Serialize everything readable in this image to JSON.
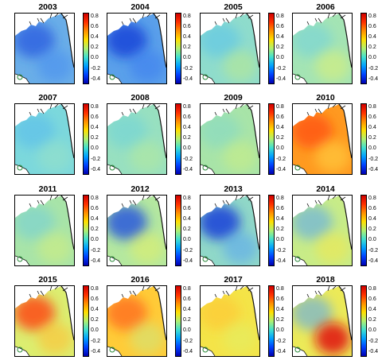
{
  "colorbar": {
    "ticks": [
      "0.8",
      "0.6",
      "0.4",
      "0.2",
      "0.0",
      "-0.2",
      "-0.4"
    ],
    "colors": [
      "#d00000",
      "#ff3000",
      "#ff9000",
      "#ffe000",
      "#b0f070",
      "#40e0d0",
      "#00a0ff",
      "#0040ff",
      "#0000b0"
    ]
  },
  "panels": [
    {
      "year": "2003",
      "base": "#6aaee8",
      "blobs": [
        {
          "color": "#2a5ee0",
          "opacity": 0.8
        },
        {
          "color": "#4a8ff0",
          "opacity": 0.6
        }
      ]
    },
    {
      "year": "2004",
      "base": "#5aa0ea",
      "blobs": [
        {
          "color": "#1a46d8",
          "opacity": 0.85
        },
        {
          "color": "#3a7ef0",
          "opacity": 0.6
        }
      ]
    },
    {
      "year": "2005",
      "base": "#8fdccc",
      "blobs": [
        {
          "color": "#5cc4ea",
          "opacity": 0.6
        },
        {
          "color": "#c0ec88",
          "opacity": 0.5
        }
      ]
    },
    {
      "year": "2006",
      "base": "#a4e4b4",
      "blobs": [
        {
          "color": "#6cd0e4",
          "opacity": 0.5
        },
        {
          "color": "#d8f078",
          "opacity": 0.6
        }
      ]
    },
    {
      "year": "2007",
      "base": "#7cd8dc",
      "blobs": [
        {
          "color": "#58bcec",
          "opacity": 0.6
        },
        {
          "color": "#9ce4c4",
          "opacity": 0.5
        }
      ]
    },
    {
      "year": "2008",
      "base": "#98e0c0",
      "blobs": [
        {
          "color": "#70d4d8",
          "opacity": 0.6
        },
        {
          "color": "#b8ec98",
          "opacity": 0.5
        }
      ]
    },
    {
      "year": "2009",
      "base": "#a8e4a8",
      "blobs": [
        {
          "color": "#80d8cc",
          "opacity": 0.5
        },
        {
          "color": "#d0f080",
          "opacity": 0.5
        }
      ]
    },
    {
      "year": "2010",
      "base": "#ff9a20",
      "blobs": [
        {
          "color": "#ff4a10",
          "opacity": 0.7
        },
        {
          "color": "#ffd040",
          "opacity": 0.6
        }
      ]
    },
    {
      "year": "2011",
      "base": "#a8e4a8",
      "blobs": [
        {
          "color": "#6ccce0",
          "opacity": 0.5
        },
        {
          "color": "#d8f078",
          "opacity": 0.5
        }
      ]
    },
    {
      "year": "2012",
      "base": "#b4e8a0",
      "blobs": [
        {
          "color": "#2050e0",
          "opacity": 0.8
        },
        {
          "color": "#e8f060",
          "opacity": 0.5
        }
      ]
    },
    {
      "year": "2013",
      "base": "#90d8c8",
      "blobs": [
        {
          "color": "#1a40d8",
          "opacity": 0.85
        },
        {
          "color": "#5aa8ee",
          "opacity": 0.6
        }
      ]
    },
    {
      "year": "2014",
      "base": "#c8ec88",
      "blobs": [
        {
          "color": "#5aa8ee",
          "opacity": 0.6
        },
        {
          "color": "#f0e850",
          "opacity": 0.6
        }
      ]
    },
    {
      "year": "2015",
      "base": "#dcee70",
      "blobs": [
        {
          "color": "#ff4010",
          "opacity": 0.8
        },
        {
          "color": "#ffc030",
          "opacity": 0.6
        }
      ]
    },
    {
      "year": "2016",
      "base": "#ffcc38",
      "blobs": [
        {
          "color": "#ff6018",
          "opacity": 0.7
        },
        {
          "color": "#c8ec88",
          "opacity": 0.5
        }
      ]
    },
    {
      "year": "2017",
      "base": "#f4e448",
      "blobs": [
        {
          "color": "#ffc430",
          "opacity": 0.6
        },
        {
          "color": "#e0f068",
          "opacity": 0.5
        }
      ]
    },
    {
      "year": "2018",
      "base": "#ecea58",
      "blobs": [
        {
          "color": "#5aa8ee",
          "opacity": 0.6
        },
        {
          "color": "#e01010",
          "opacity": 0.85
        }
      ]
    }
  ]
}
